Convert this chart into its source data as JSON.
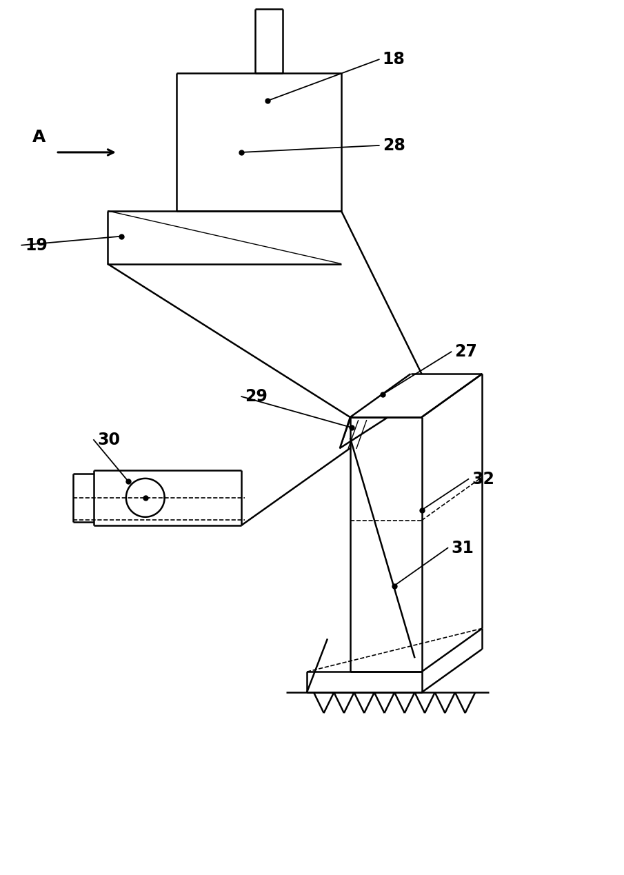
{
  "bg_color": "#ffffff",
  "line_color": "#000000",
  "figsize": [
    9.05,
    12.69
  ],
  "dpi": 100,
  "lw": 1.8,
  "lw_thin": 1.0,
  "lw_dash": 1.2,
  "label_fs": 17
}
